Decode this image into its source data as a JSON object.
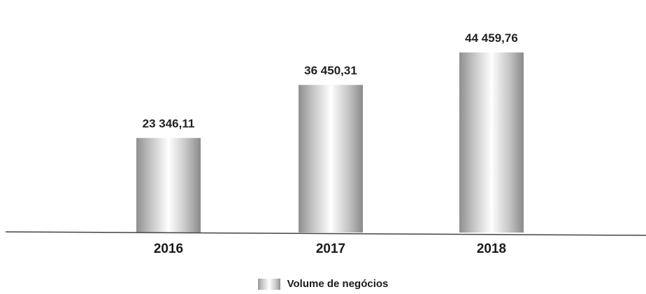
{
  "chart_data": {
    "type": "bar",
    "categories": [
      "2016",
      "2017",
      "2018"
    ],
    "series": [
      {
        "name": "Volume de negócios",
        "values": [
          23346.11,
          36450.31,
          44459.76
        ]
      }
    ],
    "data_labels": [
      "23 346,11",
      "36 450,31",
      "44 459,76"
    ],
    "ylim": [
      0,
      50000
    ],
    "grid": false,
    "legend_position": "bottom-center",
    "bar_style": "gray cylinder gradient"
  }
}
